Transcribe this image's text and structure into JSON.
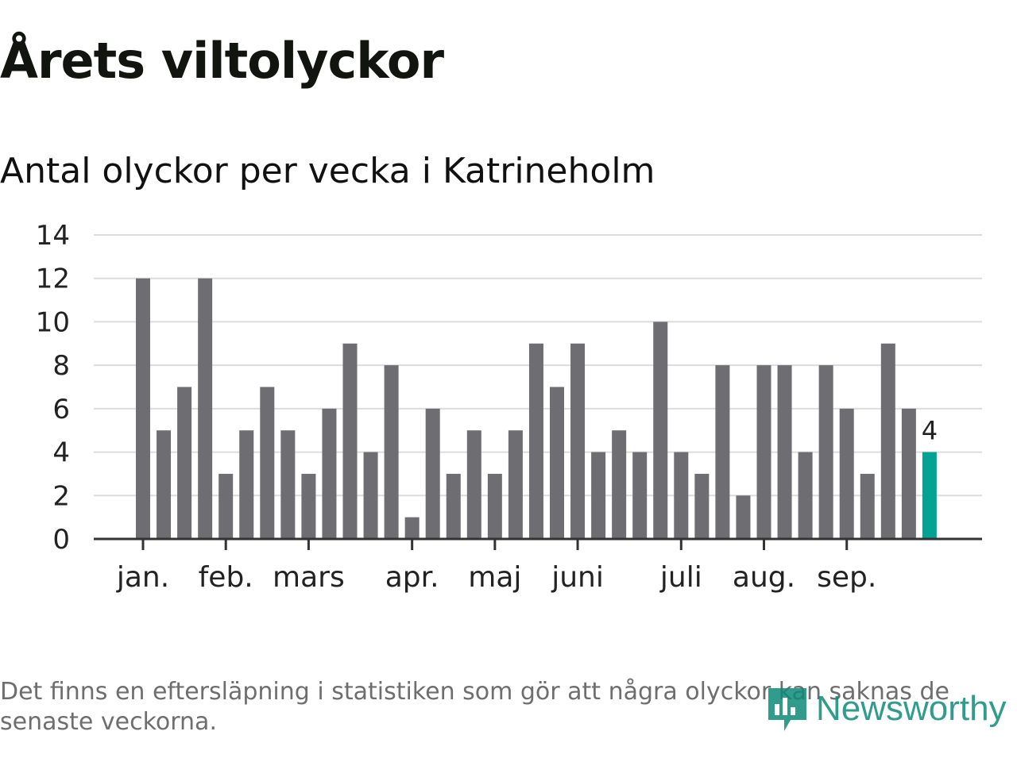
{
  "header": {
    "title": "Årets viltolyckor",
    "subtitle": "Antal olyckor per vecka i Katrineholm"
  },
  "chart_data": {
    "type": "bar",
    "title": "Årets viltolyckor",
    "subtitle": "Antal olyckor per vecka i Katrineholm",
    "xlabel": "",
    "ylabel": "",
    "ylim": [
      0,
      14
    ],
    "yticks": [
      0,
      2,
      4,
      6,
      8,
      10,
      12,
      14
    ],
    "grid": true,
    "values": [
      12,
      5,
      7,
      12,
      3,
      5,
      7,
      5,
      3,
      6,
      9,
      4,
      8,
      1,
      6,
      3,
      5,
      3,
      5,
      9,
      7,
      9,
      4,
      5,
      4,
      10,
      4,
      3,
      8,
      2,
      8,
      8,
      4,
      8,
      6,
      3,
      9,
      6,
      4
    ],
    "highlight_index": 38,
    "highlight_label": "4",
    "month_labels": [
      {
        "label": "jan.",
        "bar_index": 0
      },
      {
        "label": "feb.",
        "bar_index": 4
      },
      {
        "label": "mars",
        "bar_index": 8
      },
      {
        "label": "apr.",
        "bar_index": 13
      },
      {
        "label": "maj",
        "bar_index": 17
      },
      {
        "label": "juni",
        "bar_index": 21
      },
      {
        "label": "juli",
        "bar_index": 26
      },
      {
        "label": "aug.",
        "bar_index": 30
      },
      {
        "label": "sep.",
        "bar_index": 34
      }
    ]
  },
  "colors": {
    "bar": "#6d6d72",
    "highlight": "#03a293",
    "grid": "#dcdcdc",
    "axis": "#333333",
    "brand": "#0e8a78"
  },
  "footer": {
    "note": "Det finns en eftersläpning i statistiken som gör att några olyckor kan saknas de senaste veckorna.",
    "brand": "Newsworthy",
    "brand_icon": "newsworthy-logo-icon"
  }
}
